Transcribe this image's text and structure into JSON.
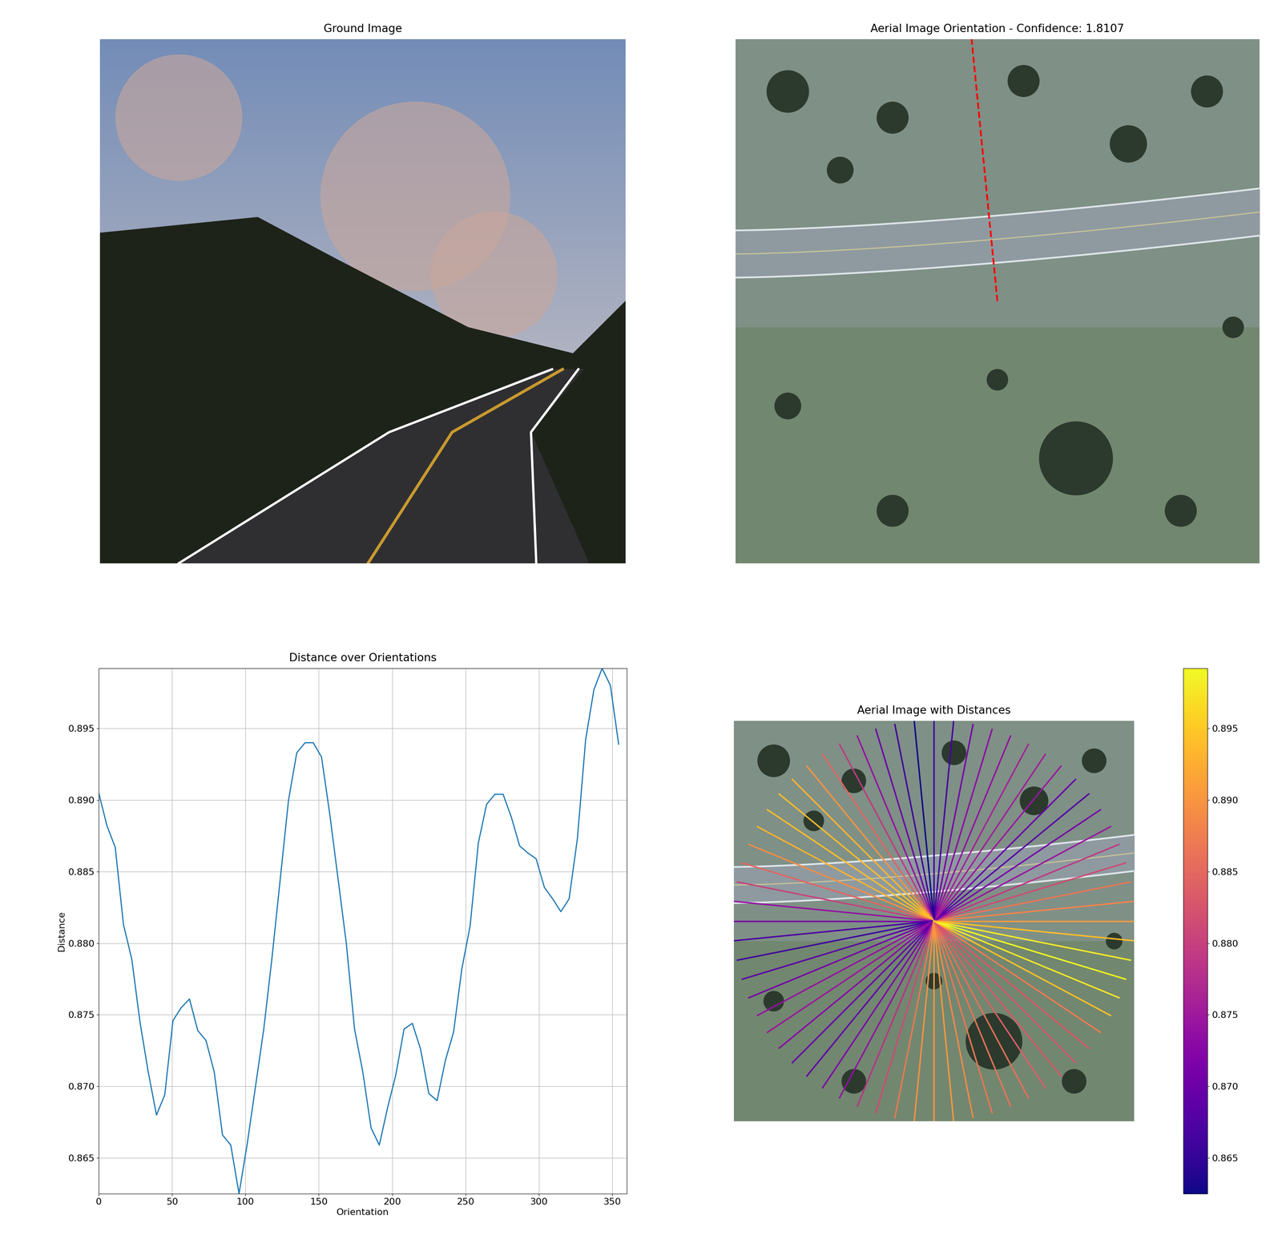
{
  "chart_data": [
    {
      "type": "image",
      "title": "Ground Image"
    },
    {
      "type": "image",
      "title": "Aerial Image Orientation - Confidence: 1.8107",
      "best_orientation": 95.625,
      "color": "red",
      "line_style": "dashed"
    },
    {
      "type": "line",
      "title": "Distance over Orientations",
      "x_label": "Orientation",
      "y_label": "Distance",
      "x": [
        0,
        5.625,
        11.25,
        16.875,
        22.5,
        28.125,
        33.75,
        39.375,
        45,
        50.625,
        56.25,
        61.875,
        67.5,
        73.125,
        78.75,
        84.375,
        90,
        95.625,
        101.25,
        106.875,
        112.5,
        118.125,
        123.75,
        129.375,
        135,
        140.625,
        146.25,
        151.875,
        157.5,
        163.125,
        168.75,
        174.375,
        180,
        185.625,
        191.25,
        196.875,
        202.5,
        208.125,
        213.75,
        219.375,
        225,
        230.625,
        236.25,
        241.875,
        247.5,
        253.125,
        258.75,
        264.375,
        270,
        275.625,
        281.25,
        286.875,
        292.5,
        298.125,
        303.75,
        309.375,
        315,
        320.625,
        326.25,
        331.875,
        337.5,
        343.125,
        348.75,
        354.375
      ],
      "values": [
        0.8905,
        0.8882,
        0.8867,
        0.8813,
        0.8789,
        0.8745,
        0.871,
        0.868,
        0.8694,
        0.8746,
        0.8755,
        0.8761,
        0.8739,
        0.8732,
        0.871,
        0.8666,
        0.8659,
        0.8625,
        0.866,
        0.87,
        0.874,
        0.879,
        0.8845,
        0.89,
        0.8933,
        0.894,
        0.894,
        0.893,
        0.889,
        0.8845,
        0.88,
        0.874,
        0.871,
        0.8671,
        0.8659,
        0.8685,
        0.8708,
        0.874,
        0.8744,
        0.8726,
        0.8695,
        0.869,
        0.8718,
        0.8738,
        0.8782,
        0.8812,
        0.887,
        0.8897,
        0.8904,
        0.8904,
        0.8888,
        0.8868,
        0.8863,
        0.8859,
        0.8839,
        0.8831,
        0.8822,
        0.8831,
        0.8873,
        0.8942,
        0.8977,
        0.8992,
        0.898,
        0.8939
      ],
      "color": "#1f77b4",
      "xlim": [
        0,
        360
      ],
      "xticks": [
        0,
        50,
        100,
        150,
        200,
        250,
        300,
        350
      ],
      "ylim": [
        0.8625,
        0.8992
      ],
      "yticks": [
        0.865,
        {
          "value": 0.87,
          "label": "0.870"
        },
        0.875,
        {
          "value": 0.88,
          "label": "0.880"
        },
        0.885,
        {
          "value": 0.89,
          "label": "0.890"
        },
        0.895
      ],
      "grid": true
    },
    {
      "type": "rays",
      "title": "Aerial Image with Distances",
      "x": [
        0,
        5.625,
        11.25,
        16.875,
        22.5,
        28.125,
        33.75,
        39.375,
        45,
        50.625,
        56.25,
        61.875,
        67.5,
        73.125,
        78.75,
        84.375,
        90,
        95.625,
        101.25,
        106.875,
        112.5,
        118.125,
        123.75,
        129.375,
        135,
        140.625,
        146.25,
        151.875,
        157.5,
        163.125,
        168.75,
        174.375,
        180,
        185.625,
        191.25,
        196.875,
        202.5,
        208.125,
        213.75,
        219.375,
        225,
        230.625,
        236.25,
        241.875,
        247.5,
        253.125,
        258.75,
        264.375,
        270,
        275.625,
        281.25,
        286.875,
        292.5,
        298.125,
        303.75,
        309.375,
        315,
        320.625,
        326.25,
        331.875,
        337.5,
        343.125,
        348.75,
        354.375
      ],
      "values": [
        0.8905,
        0.8882,
        0.8867,
        0.8813,
        0.8789,
        0.8745,
        0.871,
        0.868,
        0.8694,
        0.8746,
        0.8755,
        0.8761,
        0.8739,
        0.8732,
        0.871,
        0.8666,
        0.8659,
        0.8625,
        0.866,
        0.87,
        0.874,
        0.879,
        0.8845,
        0.89,
        0.8933,
        0.894,
        0.894,
        0.893,
        0.889,
        0.8845,
        0.88,
        0.874,
        0.871,
        0.8671,
        0.8659,
        0.8685,
        0.8708,
        0.874,
        0.8744,
        0.8726,
        0.8695,
        0.869,
        0.8718,
        0.8738,
        0.8782,
        0.8812,
        0.887,
        0.8897,
        0.8904,
        0.8904,
        0.8888,
        0.8868,
        0.8863,
        0.8859,
        0.8839,
        0.8831,
        0.8822,
        0.8831,
        0.8873,
        0.8942,
        0.8977,
        0.8992,
        0.898,
        0.8939
      ],
      "colorbar_range": [
        0.8625,
        0.8992
      ],
      "colorbar_ticks": [
        0.865,
        {
          "value": 0.87,
          "label": "0.870"
        },
        0.875,
        {
          "value": 0.88,
          "label": "0.880"
        },
        0.885,
        {
          "value": 0.89,
          "label": "0.890"
        },
        0.895
      ]
    }
  ]
}
